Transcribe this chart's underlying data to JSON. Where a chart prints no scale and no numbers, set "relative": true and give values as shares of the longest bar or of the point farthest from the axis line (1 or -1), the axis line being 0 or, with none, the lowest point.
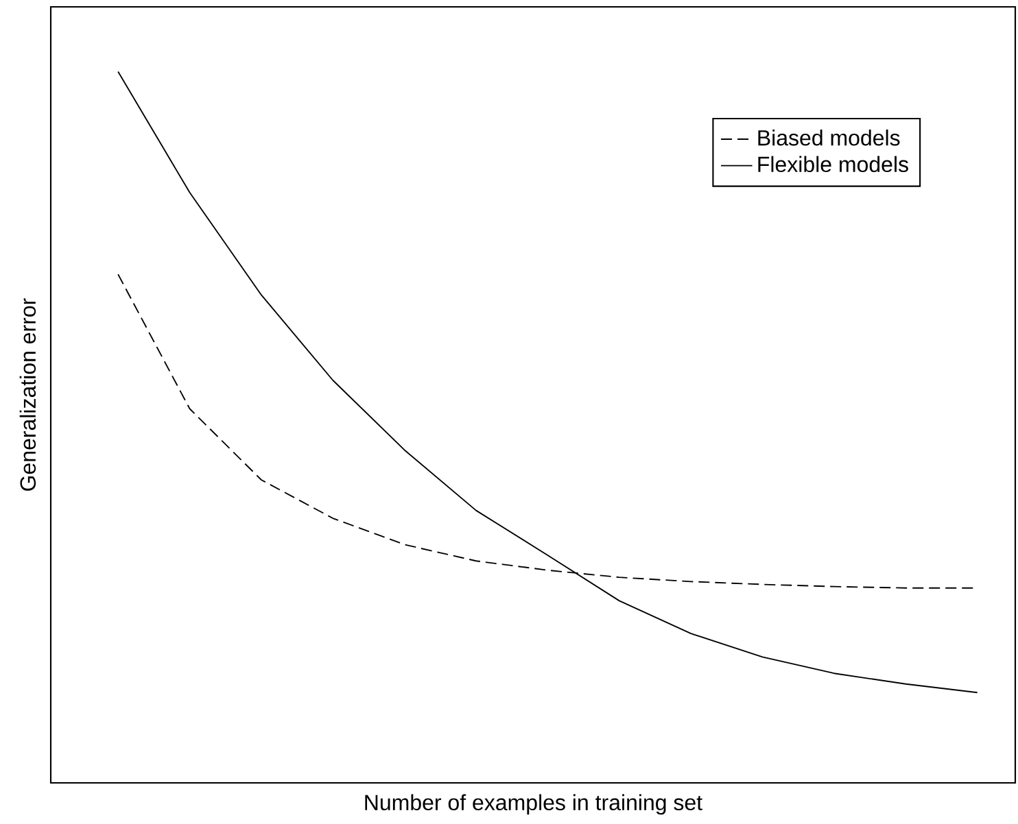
{
  "chart_data": {
    "type": "line",
    "xlabel": "Number of examples in training set",
    "ylabel": "Generalization error",
    "relative": true,
    "legend": "top right",
    "marker": "none",
    "categories": [
      null,
      null,
      null,
      null,
      null,
      null,
      null,
      null,
      null,
      null,
      null,
      null,
      null
    ],
    "series": [
      {
        "name": "Biased models",
        "color": "#000000",
        "line_style": "dashed",
        "values": [
          0.715,
          0.526,
          0.426,
          0.372,
          0.335,
          0.312,
          0.299,
          0.289,
          0.283,
          0.279,
          0.276,
          0.274,
          0.274
        ]
      },
      {
        "name": "Flexible models",
        "color": "#000000",
        "line_style": "solid",
        "values": [
          1.0,
          0.83,
          0.686,
          0.566,
          0.468,
          0.383,
          0.32,
          0.256,
          0.21,
          0.177,
          0.154,
          0.139,
          0.127
        ]
      }
    ]
  }
}
